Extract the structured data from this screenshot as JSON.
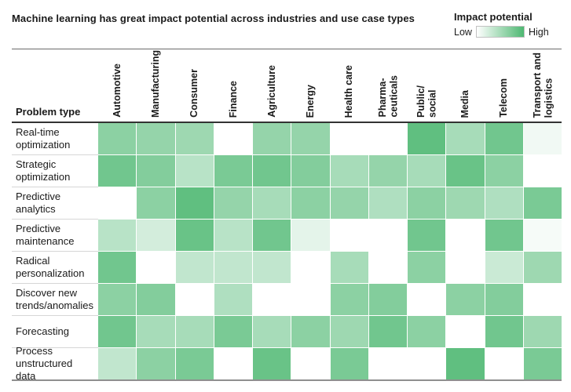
{
  "title": "Machine learning has great impact potential across industries and use case types",
  "legend": {
    "title": "Impact potential",
    "low_label": "Low",
    "high_label": "High"
  },
  "colors": {
    "accent_green": "#4eb872",
    "cell_min": "#ffffff",
    "header_rule": "#333333",
    "top_rule": "#6a6a6a",
    "bottom_rule": "#8f8f8f",
    "row_separator": "#d6d6d6"
  },
  "chart_data": {
    "type": "heatmap",
    "title": "Machine learning has great impact potential across industries and use case types",
    "row_axis_label": "Problem type",
    "columns": [
      "Automotive",
      "Manufacturing",
      "Consumer",
      "Finance",
      "Agriculture",
      "Energy",
      "Health care",
      "Pharma-\nceuticals",
      "Public/\nsocial",
      "Media",
      "Telecom",
      "Transport and\nlogistics"
    ],
    "rows": [
      "Real-time optimization",
      "Strategic optimization",
      "Predictive analytics",
      "Predictive maintenance",
      "Radical personalization",
      "Discover new trends/anomalies",
      "Forecasting",
      "Process unstructured data"
    ],
    "values": [
      [
        0.65,
        0.6,
        0.55,
        0.0,
        0.6,
        0.6,
        0.0,
        0.0,
        0.9,
        0.5,
        0.8,
        0.08
      ],
      [
        0.8,
        0.7,
        0.4,
        0.75,
        0.8,
        0.7,
        0.5,
        0.6,
        0.5,
        0.85,
        0.65,
        0.0
      ],
      [
        0.0,
        0.65,
        0.9,
        0.6,
        0.5,
        0.65,
        0.6,
        0.45,
        0.65,
        0.55,
        0.45,
        0.75
      ],
      [
        0.4,
        0.25,
        0.85,
        0.4,
        0.8,
        0.15,
        0.0,
        0.0,
        0.8,
        0.0,
        0.8,
        0.05
      ],
      [
        0.8,
        0.0,
        0.35,
        0.35,
        0.35,
        0.0,
        0.5,
        0.0,
        0.65,
        0.0,
        0.3,
        0.55
      ],
      [
        0.65,
        0.7,
        0.0,
        0.45,
        0.0,
        0.0,
        0.65,
        0.7,
        0.0,
        0.65,
        0.7,
        0.0
      ],
      [
        0.8,
        0.5,
        0.5,
        0.75,
        0.5,
        0.65,
        0.55,
        0.8,
        0.65,
        0.0,
        0.8,
        0.55
      ],
      [
        0.35,
        0.65,
        0.75,
        0.0,
        0.85,
        0.0,
        0.75,
        0.0,
        0.0,
        0.9,
        0.0,
        0.75
      ]
    ],
    "scale": {
      "min": 0,
      "max": 1,
      "min_label": "Low",
      "max_label": "High",
      "min_color": "#ffffff",
      "max_color": "#4eb872"
    },
    "legend_position": "top-right",
    "grid": false
  }
}
